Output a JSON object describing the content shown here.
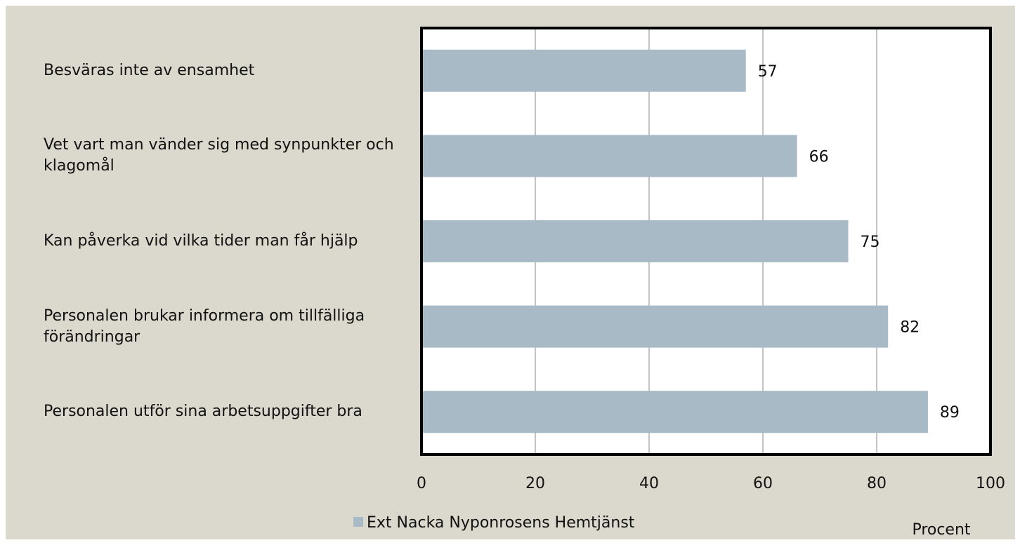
{
  "chart_data": {
    "type": "bar",
    "orientation": "horizontal",
    "categories": [
      "Besväras inte av ensamhet",
      "Vet vart man vänder sig med synpunkter och klagomål",
      "Kan påverka vid vilka tider man får hjälp",
      "Personalen brukar informera om tillfälliga förändringar",
      "Personalen utför sina arbetsuppgifter bra"
    ],
    "series": [
      {
        "name": "Ext Nacka Nyponrosens Hemtjänst",
        "color": "#a7bac6",
        "values": [
          57,
          66,
          75,
          82,
          89
        ]
      }
    ],
    "xlabel": "Procent",
    "xlim": [
      0,
      100
    ],
    "xticks": [
      0,
      20,
      40,
      60,
      80,
      100
    ],
    "grid": true,
    "legend": "bottom"
  }
}
